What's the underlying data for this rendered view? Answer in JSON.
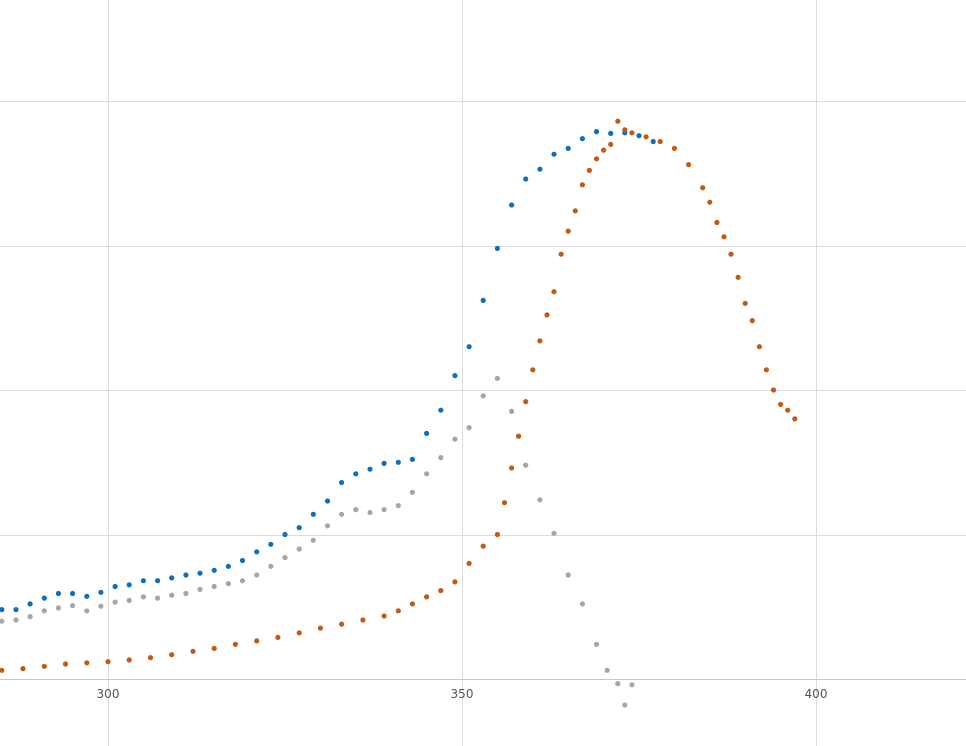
{
  "chart_data": {
    "type": "scatter",
    "title": "",
    "xlabel": "",
    "ylabel": "",
    "xlim": [
      285,
      406
    ],
    "ylim": [
      0,
      1.0
    ],
    "grid": true,
    "x_ticks": [
      300,
      350,
      400
    ],
    "x_tick_labels": [
      "300",
      "350",
      "400"
    ],
    "y_grid_values": [
      0.25,
      0.5,
      0.75,
      1.0
    ],
    "colors": {
      "blue": "#0f6fba",
      "gray": "#a6a6a6",
      "orange": "#c05a16",
      "grid": "#dcdcdc",
      "axis": "#c8c8c8",
      "tick_text": "#555555"
    },
    "series": [
      {
        "color": "#0f6fba",
        "points": [
          [
            285,
            0.12
          ],
          [
            287,
            0.12
          ],
          [
            289,
            0.13
          ],
          [
            291,
            0.14
          ],
          [
            293,
            0.148
          ],
          [
            295,
            0.148
          ],
          [
            297,
            0.143
          ],
          [
            299,
            0.15
          ],
          [
            301,
            0.16
          ],
          [
            303,
            0.163
          ],
          [
            305,
            0.17
          ],
          [
            307,
            0.17
          ],
          [
            309,
            0.175
          ],
          [
            311,
            0.18
          ],
          [
            313,
            0.183
          ],
          [
            315,
            0.188
          ],
          [
            317,
            0.195
          ],
          [
            319,
            0.205
          ],
          [
            321,
            0.22
          ],
          [
            323,
            0.233
          ],
          [
            325,
            0.25
          ],
          [
            327,
            0.262
          ],
          [
            329,
            0.285
          ],
          [
            331,
            0.308
          ],
          [
            333,
            0.34
          ],
          [
            335,
            0.355
          ],
          [
            337,
            0.363
          ],
          [
            339,
            0.373
          ],
          [
            341,
            0.375
          ],
          [
            343,
            0.38
          ],
          [
            345,
            0.425
          ],
          [
            347,
            0.465
          ],
          [
            349,
            0.525
          ],
          [
            351,
            0.575
          ],
          [
            353,
            0.655
          ],
          [
            355,
            0.745
          ],
          [
            357,
            0.82
          ],
          [
            359,
            0.865
          ],
          [
            361,
            0.882
          ],
          [
            363,
            0.908
          ],
          [
            365,
            0.918
          ],
          [
            367,
            0.935
          ],
          [
            369,
            0.947
          ],
          [
            371,
            0.944
          ],
          [
            373,
            0.945
          ],
          [
            375,
            0.94
          ],
          [
            377,
            0.93
          ]
        ]
      },
      {
        "color": "#a6a6a6",
        "points": [
          [
            285,
            0.1
          ],
          [
            287,
            0.102
          ],
          [
            289,
            0.108
          ],
          [
            291,
            0.118
          ],
          [
            293,
            0.123
          ],
          [
            295,
            0.127
          ],
          [
            297,
            0.118
          ],
          [
            299,
            0.126
          ],
          [
            301,
            0.133
          ],
          [
            303,
            0.136
          ],
          [
            305,
            0.142
          ],
          [
            307,
            0.14
          ],
          [
            309,
            0.145
          ],
          [
            311,
            0.148
          ],
          [
            313,
            0.155
          ],
          [
            315,
            0.16
          ],
          [
            317,
            0.165
          ],
          [
            319,
            0.17
          ],
          [
            321,
            0.18
          ],
          [
            323,
            0.195
          ],
          [
            325,
            0.21
          ],
          [
            327,
            0.225
          ],
          [
            329,
            0.24
          ],
          [
            331,
            0.265
          ],
          [
            333,
            0.285
          ],
          [
            335,
            0.293
          ],
          [
            337,
            0.288
          ],
          [
            339,
            0.293
          ],
          [
            341,
            0.3
          ],
          [
            343,
            0.323
          ],
          [
            345,
            0.355
          ],
          [
            347,
            0.383
          ],
          [
            349,
            0.415
          ],
          [
            351,
            0.435
          ],
          [
            353,
            0.49
          ],
          [
            355,
            0.52
          ],
          [
            357,
            0.463
          ],
          [
            358,
            0.42
          ],
          [
            359,
            0.37
          ],
          [
            361,
            0.31
          ],
          [
            363,
            0.252
          ],
          [
            365,
            0.18
          ],
          [
            367,
            0.13
          ],
          [
            369,
            0.06
          ],
          [
            370.5,
            0.015
          ],
          [
            372,
            -0.008
          ],
          [
            373,
            -0.045
          ],
          [
            374,
            -0.01
          ]
        ]
      },
      {
        "color": "#c05a16",
        "points": [
          [
            285,
            0.015
          ],
          [
            288,
            0.018
          ],
          [
            291,
            0.022
          ],
          [
            294,
            0.026
          ],
          [
            297,
            0.028
          ],
          [
            300,
            0.03
          ],
          [
            303,
            0.033
          ],
          [
            306,
            0.037
          ],
          [
            309,
            0.042
          ],
          [
            312,
            0.048
          ],
          [
            315,
            0.053
          ],
          [
            318,
            0.06
          ],
          [
            321,
            0.066
          ],
          [
            324,
            0.072
          ],
          [
            327,
            0.08
          ],
          [
            330,
            0.088
          ],
          [
            333,
            0.095
          ],
          [
            336,
            0.102
          ],
          [
            339,
            0.109
          ],
          [
            341,
            0.118
          ],
          [
            343,
            0.13
          ],
          [
            345,
            0.142
          ],
          [
            347,
            0.153
          ],
          [
            349,
            0.168
          ],
          [
            351,
            0.2
          ],
          [
            353,
            0.23
          ],
          [
            355,
            0.25
          ],
          [
            356,
            0.305
          ],
          [
            357,
            0.365
          ],
          [
            358,
            0.42
          ],
          [
            359,
            0.48
          ],
          [
            360,
            0.535
          ],
          [
            361,
            0.585
          ],
          [
            362,
            0.63
          ],
          [
            363,
            0.67
          ],
          [
            364,
            0.735
          ],
          [
            365,
            0.775
          ],
          [
            366,
            0.81
          ],
          [
            367,
            0.855
          ],
          [
            368,
            0.88
          ],
          [
            369,
            0.9
          ],
          [
            370,
            0.915
          ],
          [
            371,
            0.925
          ],
          [
            372,
            0.965
          ],
          [
            373,
            0.95
          ],
          [
            374,
            0.945
          ],
          [
            376,
            0.938
          ],
          [
            378,
            0.93
          ],
          [
            380,
            0.918
          ],
          [
            382,
            0.89
          ],
          [
            384,
            0.85
          ],
          [
            385,
            0.825
          ],
          [
            386,
            0.79
          ],
          [
            387,
            0.765
          ],
          [
            388,
            0.735
          ],
          [
            389,
            0.695
          ],
          [
            390,
            0.65
          ],
          [
            391,
            0.62
          ],
          [
            392,
            0.575
          ],
          [
            393,
            0.535
          ],
          [
            394,
            0.5
          ],
          [
            395,
            0.475
          ],
          [
            396,
            0.465
          ],
          [
            397,
            0.45
          ]
        ]
      }
    ]
  }
}
